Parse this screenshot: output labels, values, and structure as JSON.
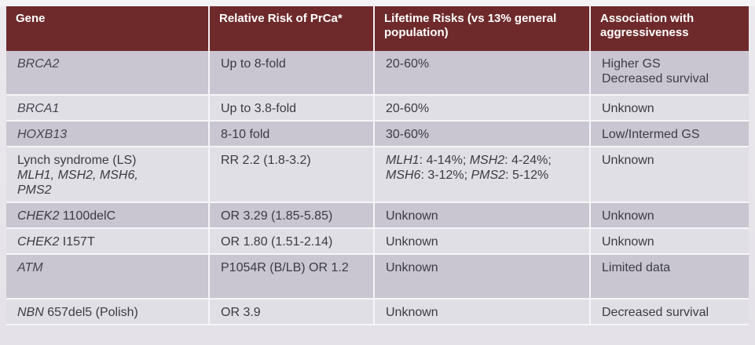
{
  "table": {
    "headers": {
      "gene": "Gene",
      "relative_risk": "Relative Risk of PrCa*",
      "lifetime_risks": "Lifetime Risks (vs 13% general population)",
      "association": "Association with aggressiveness"
    },
    "rows": [
      {
        "gene": "BRCA2",
        "relative_risk": "Up to 8-fold",
        "lifetime_risks": "20-60%",
        "association_line1": "Higher GS",
        "association_line2": "Decreased survival"
      },
      {
        "gene": "BRCA1",
        "relative_risk": "Up to 3.8-fold",
        "lifetime_risks": "20-60%",
        "association": "Unknown"
      },
      {
        "gene": "HOXB13",
        "relative_risk": "8-10 fold",
        "lifetime_risks": "30-60%",
        "association": "Low/Intermed GS"
      },
      {
        "gene_line1": "Lynch syndrome (LS)",
        "gene_line2": "MLH1, MSH2, MSH6,",
        "gene_line3": "PMS2",
        "relative_risk": "RR 2.2 (1.8-3.2)",
        "lt_mlh1": "MLH1",
        "lt_mlh1_val": ": 4-14%; ",
        "lt_msh2": "MSH2",
        "lt_msh2_val": ": 4-24%;",
        "lt_msh6": "MSH6",
        "lt_msh6_val": ": 3-12%; ",
        "lt_pms2": "PMS2",
        "lt_pms2_val": ": 5-12%",
        "association": "Unknown"
      },
      {
        "gene_name": "CHEK2",
        "gene_variant": " 1100delC",
        "relative_risk": "OR 3.29 (1.85-5.85)",
        "lifetime_risks": "Unknown",
        "association": "Unknown"
      },
      {
        "gene_name": "CHEK2",
        "gene_variant": " I157T",
        "relative_risk": "OR 1.80 (1.51-2.14)",
        "lifetime_risks": "Unknown",
        "association": "Unknown"
      },
      {
        "gene": "ATM",
        "relative_risk": "P1054R (B/LB) OR 1.2",
        "lifetime_risks": "Unknown",
        "association": "Limited data"
      },
      {
        "gene_name": "NBN",
        "gene_variant": " 657del5 (Polish)",
        "relative_risk": "OR 3.9",
        "lifetime_risks": "Unknown",
        "association": "Decreased survival"
      }
    ]
  }
}
